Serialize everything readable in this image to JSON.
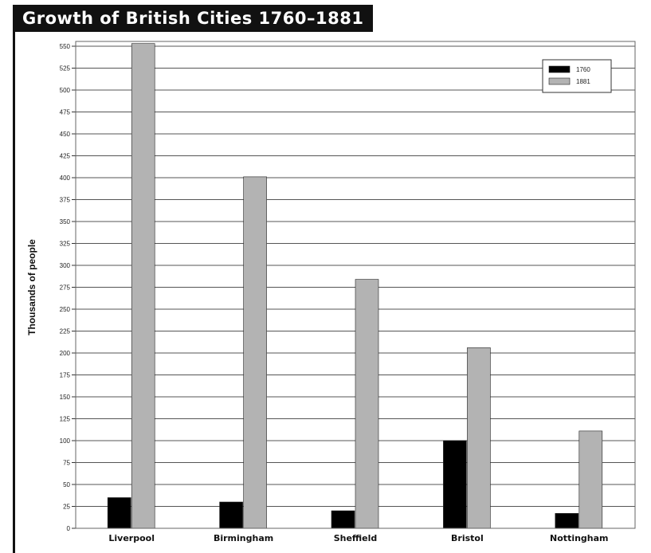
{
  "chart_data": {
    "type": "bar",
    "title": "Growth of British Cities 1760–1881",
    "xlabel": "",
    "ylabel": "Thousands of people",
    "categories": [
      "Liverpool",
      "Birmingham",
      "Sheffield",
      "Bristol",
      "Nottingham"
    ],
    "series": [
      {
        "name": "1760",
        "values": [
          35,
          30,
          20,
          100,
          17
        ],
        "color": "#000000"
      },
      {
        "name": "1881",
        "values": [
          553,
          401,
          284,
          206,
          111
        ],
        "color": "#b3b3b3"
      }
    ],
    "ylim": [
      0,
      550
    ],
    "yticks": [
      0,
      25,
      50,
      75,
      100,
      125,
      150,
      175,
      200,
      225,
      250,
      275,
      300,
      325,
      350,
      375,
      400,
      425,
      450,
      475,
      500,
      525,
      550
    ],
    "grid": true,
    "legend_position": "top-right"
  }
}
